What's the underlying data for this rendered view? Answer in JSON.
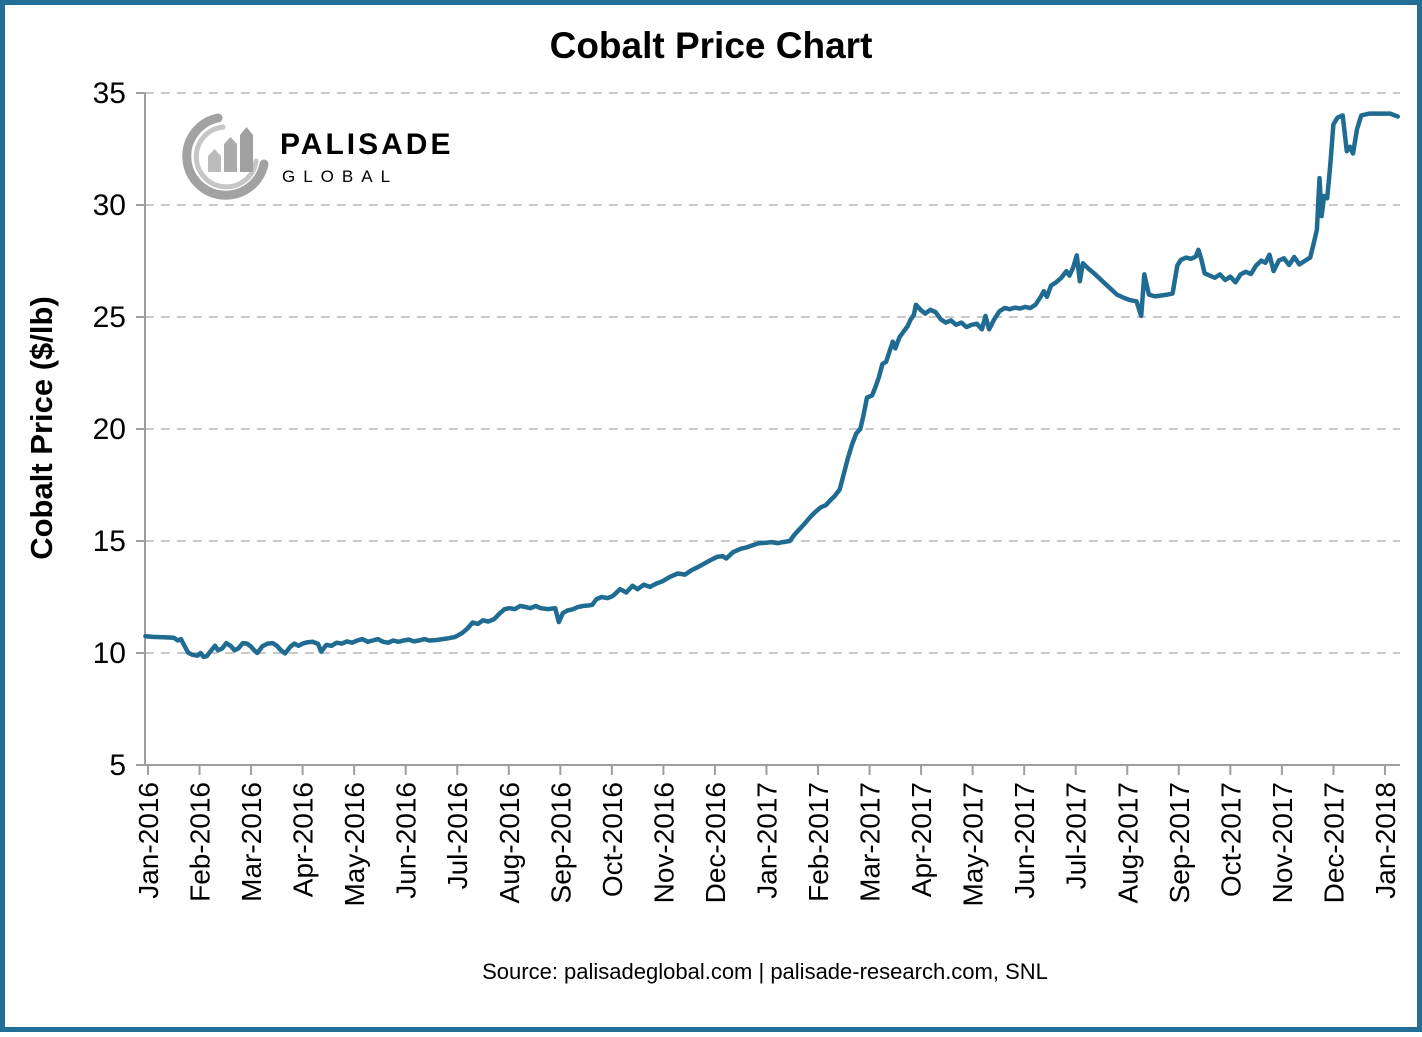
{
  "header": {
    "title": "Cobalt Price Chart"
  },
  "logo": {
    "name": "PALISADE",
    "subtitle": "GLOBAL"
  },
  "footer": {
    "source": "Source: palisadeglobal.com | palisade-research.com, SNL"
  },
  "colors": {
    "line": "#1f6b91",
    "border": "#216f97",
    "grid": "#c9c9c9",
    "axis": "#9e9e9e",
    "logo_dark": "#9b9b9b",
    "logo_mid": "#ababab",
    "logo_light": "#c6c6c6"
  },
  "chart_data": {
    "type": "line",
    "title": "Cobalt Price Chart",
    "xlabel": "",
    "ylabel": "Cobalt Price ($/lb)",
    "ylim": [
      5,
      35
    ],
    "y_ticks": [
      5,
      10,
      15,
      20,
      25,
      30,
      35
    ],
    "gridline_values": [
      10,
      15,
      20,
      25,
      30,
      35
    ],
    "grid_style": "dashed-horizontal",
    "legend_position": "none",
    "x_tick_labels": [
      "Jan-2016",
      "Feb-2016",
      "Mar-2016",
      "Apr-2016",
      "May-2016",
      "Jun-2016",
      "Jul-2016",
      "Aug-2016",
      "Sep-2016",
      "Oct-2016",
      "Nov-2016",
      "Dec-2016",
      "Jan-2017",
      "Feb-2017",
      "Mar-2017",
      "Apr-2017",
      "May-2017",
      "Jun-2017",
      "Jul-2017",
      "Aug-2017",
      "Sep-2017",
      "Oct-2017",
      "Nov-2017",
      "Dec-2017",
      "Jan-2018"
    ],
    "series": [
      {
        "name": "Cobalt Price ($/lb)",
        "x_unit": "months since Jan-2016",
        "points": [
          [
            -0.05,
            10.75
          ],
          [
            0.1,
            10.72
          ],
          [
            0.3,
            10.7
          ],
          [
            0.5,
            10.68
          ],
          [
            0.58,
            10.56
          ],
          [
            0.64,
            10.62
          ],
          [
            0.7,
            10.35
          ],
          [
            0.78,
            10.02
          ],
          [
            0.86,
            9.92
          ],
          [
            0.96,
            9.88
          ],
          [
            1.02,
            10.0
          ],
          [
            1.08,
            9.82
          ],
          [
            1.14,
            9.86
          ],
          [
            1.22,
            10.1
          ],
          [
            1.3,
            10.32
          ],
          [
            1.36,
            10.12
          ],
          [
            1.44,
            10.2
          ],
          [
            1.52,
            10.44
          ],
          [
            1.6,
            10.32
          ],
          [
            1.68,
            10.12
          ],
          [
            1.76,
            10.22
          ],
          [
            1.84,
            10.44
          ],
          [
            1.92,
            10.42
          ],
          [
            2.0,
            10.28
          ],
          [
            2.06,
            10.12
          ],
          [
            2.12,
            10.0
          ],
          [
            2.22,
            10.3
          ],
          [
            2.32,
            10.42
          ],
          [
            2.42,
            10.44
          ],
          [
            2.5,
            10.32
          ],
          [
            2.58,
            10.12
          ],
          [
            2.66,
            9.98
          ],
          [
            2.76,
            10.28
          ],
          [
            2.84,
            10.42
          ],
          [
            2.92,
            10.32
          ],
          [
            3.0,
            10.42
          ],
          [
            3.1,
            10.48
          ],
          [
            3.2,
            10.5
          ],
          [
            3.3,
            10.4
          ],
          [
            3.36,
            10.06
          ],
          [
            3.46,
            10.36
          ],
          [
            3.56,
            10.32
          ],
          [
            3.66,
            10.46
          ],
          [
            3.76,
            10.42
          ],
          [
            3.86,
            10.52
          ],
          [
            3.96,
            10.46
          ],
          [
            4.06,
            10.56
          ],
          [
            4.16,
            10.62
          ],
          [
            4.26,
            10.5
          ],
          [
            4.36,
            10.56
          ],
          [
            4.46,
            10.62
          ],
          [
            4.56,
            10.5
          ],
          [
            4.66,
            10.46
          ],
          [
            4.76,
            10.56
          ],
          [
            4.86,
            10.5
          ],
          [
            4.96,
            10.56
          ],
          [
            5.06,
            10.6
          ],
          [
            5.16,
            10.52
          ],
          [
            5.26,
            10.56
          ],
          [
            5.36,
            10.62
          ],
          [
            5.46,
            10.56
          ],
          [
            5.6,
            10.58
          ],
          [
            5.72,
            10.62
          ],
          [
            5.84,
            10.66
          ],
          [
            5.96,
            10.72
          ],
          [
            6.1,
            10.9
          ],
          [
            6.2,
            11.1
          ],
          [
            6.3,
            11.36
          ],
          [
            6.4,
            11.3
          ],
          [
            6.5,
            11.46
          ],
          [
            6.6,
            11.4
          ],
          [
            6.72,
            11.52
          ],
          [
            6.82,
            11.76
          ],
          [
            6.92,
            11.96
          ],
          [
            7.02,
            12.0
          ],
          [
            7.12,
            11.96
          ],
          [
            7.22,
            12.1
          ],
          [
            7.32,
            12.06
          ],
          [
            7.42,
            12.0
          ],
          [
            7.52,
            12.1
          ],
          [
            7.62,
            12.0
          ],
          [
            7.76,
            11.96
          ],
          [
            7.9,
            12.0
          ],
          [
            7.97,
            11.38
          ],
          [
            8.05,
            11.78
          ],
          [
            8.14,
            11.9
          ],
          [
            8.24,
            11.95
          ],
          [
            8.34,
            12.05
          ],
          [
            8.44,
            12.1
          ],
          [
            8.54,
            12.12
          ],
          [
            8.62,
            12.15
          ],
          [
            8.7,
            12.4
          ],
          [
            8.8,
            12.5
          ],
          [
            8.92,
            12.45
          ],
          [
            9.02,
            12.55
          ],
          [
            9.16,
            12.85
          ],
          [
            9.28,
            12.7
          ],
          [
            9.4,
            13.0
          ],
          [
            9.5,
            12.85
          ],
          [
            9.62,
            13.05
          ],
          [
            9.74,
            12.95
          ],
          [
            9.86,
            13.1
          ],
          [
            9.98,
            13.2
          ],
          [
            10.13,
            13.4
          ],
          [
            10.28,
            13.55
          ],
          [
            10.42,
            13.5
          ],
          [
            10.55,
            13.7
          ],
          [
            10.68,
            13.85
          ],
          [
            10.8,
            14.0
          ],
          [
            10.92,
            14.15
          ],
          [
            11.05,
            14.3
          ],
          [
            11.15,
            14.32
          ],
          [
            11.22,
            14.22
          ],
          [
            11.35,
            14.5
          ],
          [
            11.5,
            14.65
          ],
          [
            11.62,
            14.72
          ],
          [
            11.72,
            14.8
          ],
          [
            11.85,
            14.9
          ],
          [
            11.98,
            14.92
          ],
          [
            12.1,
            14.95
          ],
          [
            12.22,
            14.9
          ],
          [
            12.32,
            14.95
          ],
          [
            12.45,
            15.0
          ],
          [
            12.55,
            15.3
          ],
          [
            12.65,
            15.55
          ],
          [
            12.75,
            15.8
          ],
          [
            12.86,
            16.1
          ],
          [
            12.95,
            16.3
          ],
          [
            13.05,
            16.5
          ],
          [
            13.15,
            16.6
          ],
          [
            13.25,
            16.85
          ],
          [
            13.32,
            17.0
          ],
          [
            13.42,
            17.3
          ],
          [
            13.5,
            18.0
          ],
          [
            13.58,
            18.7
          ],
          [
            13.66,
            19.3
          ],
          [
            13.74,
            19.8
          ],
          [
            13.82,
            20.0
          ],
          [
            13.88,
            20.6
          ],
          [
            13.95,
            21.4
          ],
          [
            14.05,
            21.5
          ],
          [
            14.12,
            21.9
          ],
          [
            14.18,
            22.3
          ],
          [
            14.25,
            22.9
          ],
          [
            14.32,
            23.0
          ],
          [
            14.38,
            23.4
          ],
          [
            14.45,
            23.9
          ],
          [
            14.5,
            23.6
          ],
          [
            14.58,
            24.1
          ],
          [
            14.66,
            24.35
          ],
          [
            14.74,
            24.6
          ],
          [
            14.8,
            24.9
          ],
          [
            14.86,
            25.1
          ],
          [
            14.9,
            25.55
          ],
          [
            15.0,
            25.3
          ],
          [
            15.08,
            25.15
          ],
          [
            15.18,
            25.32
          ],
          [
            15.28,
            25.22
          ],
          [
            15.38,
            24.9
          ],
          [
            15.48,
            24.75
          ],
          [
            15.58,
            24.85
          ],
          [
            15.68,
            24.65
          ],
          [
            15.78,
            24.75
          ],
          [
            15.88,
            24.55
          ],
          [
            15.98,
            24.65
          ],
          [
            16.08,
            24.7
          ],
          [
            16.18,
            24.45
          ],
          [
            16.25,
            25.05
          ],
          [
            16.32,
            24.45
          ],
          [
            16.42,
            24.9
          ],
          [
            16.52,
            25.25
          ],
          [
            16.62,
            25.4
          ],
          [
            16.72,
            25.35
          ],
          [
            16.82,
            25.42
          ],
          [
            16.92,
            25.38
          ],
          [
            17.02,
            25.45
          ],
          [
            17.12,
            25.4
          ],
          [
            17.22,
            25.55
          ],
          [
            17.32,
            25.9
          ],
          [
            17.38,
            26.15
          ],
          [
            17.44,
            25.9
          ],
          [
            17.52,
            26.4
          ],
          [
            17.62,
            26.55
          ],
          [
            17.72,
            26.75
          ],
          [
            17.82,
            27.05
          ],
          [
            17.88,
            26.85
          ],
          [
            17.95,
            27.2
          ],
          [
            18.02,
            27.75
          ],
          [
            18.08,
            26.6
          ],
          [
            18.14,
            27.4
          ],
          [
            18.25,
            27.15
          ],
          [
            18.38,
            26.9
          ],
          [
            18.52,
            26.6
          ],
          [
            18.66,
            26.3
          ],
          [
            18.8,
            26.0
          ],
          [
            18.94,
            25.85
          ],
          [
            19.06,
            25.75
          ],
          [
            19.18,
            25.7
          ],
          [
            19.27,
            25.05
          ],
          [
            19.33,
            26.9
          ],
          [
            19.42,
            26.0
          ],
          [
            19.54,
            25.92
          ],
          [
            19.66,
            25.96
          ],
          [
            19.78,
            26.0
          ],
          [
            19.88,
            26.05
          ],
          [
            19.97,
            27.3
          ],
          [
            20.04,
            27.55
          ],
          [
            20.14,
            27.65
          ],
          [
            20.24,
            27.6
          ],
          [
            20.33,
            27.7
          ],
          [
            20.38,
            28.0
          ],
          [
            20.44,
            27.55
          ],
          [
            20.5,
            26.95
          ],
          [
            20.6,
            26.85
          ],
          [
            20.7,
            26.75
          ],
          [
            20.8,
            26.9
          ],
          [
            20.9,
            26.65
          ],
          [
            21.0,
            26.8
          ],
          [
            21.1,
            26.55
          ],
          [
            21.2,
            26.9
          ],
          [
            21.3,
            27.02
          ],
          [
            21.4,
            26.92
          ],
          [
            21.5,
            27.3
          ],
          [
            21.6,
            27.52
          ],
          [
            21.68,
            27.42
          ],
          [
            21.76,
            27.78
          ],
          [
            21.84,
            27.05
          ],
          [
            21.94,
            27.52
          ],
          [
            22.04,
            27.62
          ],
          [
            22.14,
            27.32
          ],
          [
            22.24,
            27.68
          ],
          [
            22.34,
            27.35
          ],
          [
            22.44,
            27.5
          ],
          [
            22.55,
            27.65
          ],
          [
            22.62,
            28.3
          ],
          [
            22.68,
            28.9
          ],
          [
            22.73,
            31.2
          ],
          [
            22.77,
            29.5
          ],
          [
            22.82,
            30.4
          ],
          [
            22.88,
            30.3
          ],
          [
            22.94,
            31.8
          ],
          [
            23.0,
            33.6
          ],
          [
            23.08,
            33.9
          ],
          [
            23.18,
            34.0
          ],
          [
            23.26,
            32.4
          ],
          [
            23.32,
            32.6
          ],
          [
            23.38,
            32.3
          ],
          [
            23.46,
            33.4
          ],
          [
            23.54,
            34.0
          ],
          [
            23.7,
            34.08
          ],
          [
            23.9,
            34.08
          ],
          [
            24.1,
            34.08
          ],
          [
            24.25,
            33.95
          ]
        ]
      }
    ]
  }
}
